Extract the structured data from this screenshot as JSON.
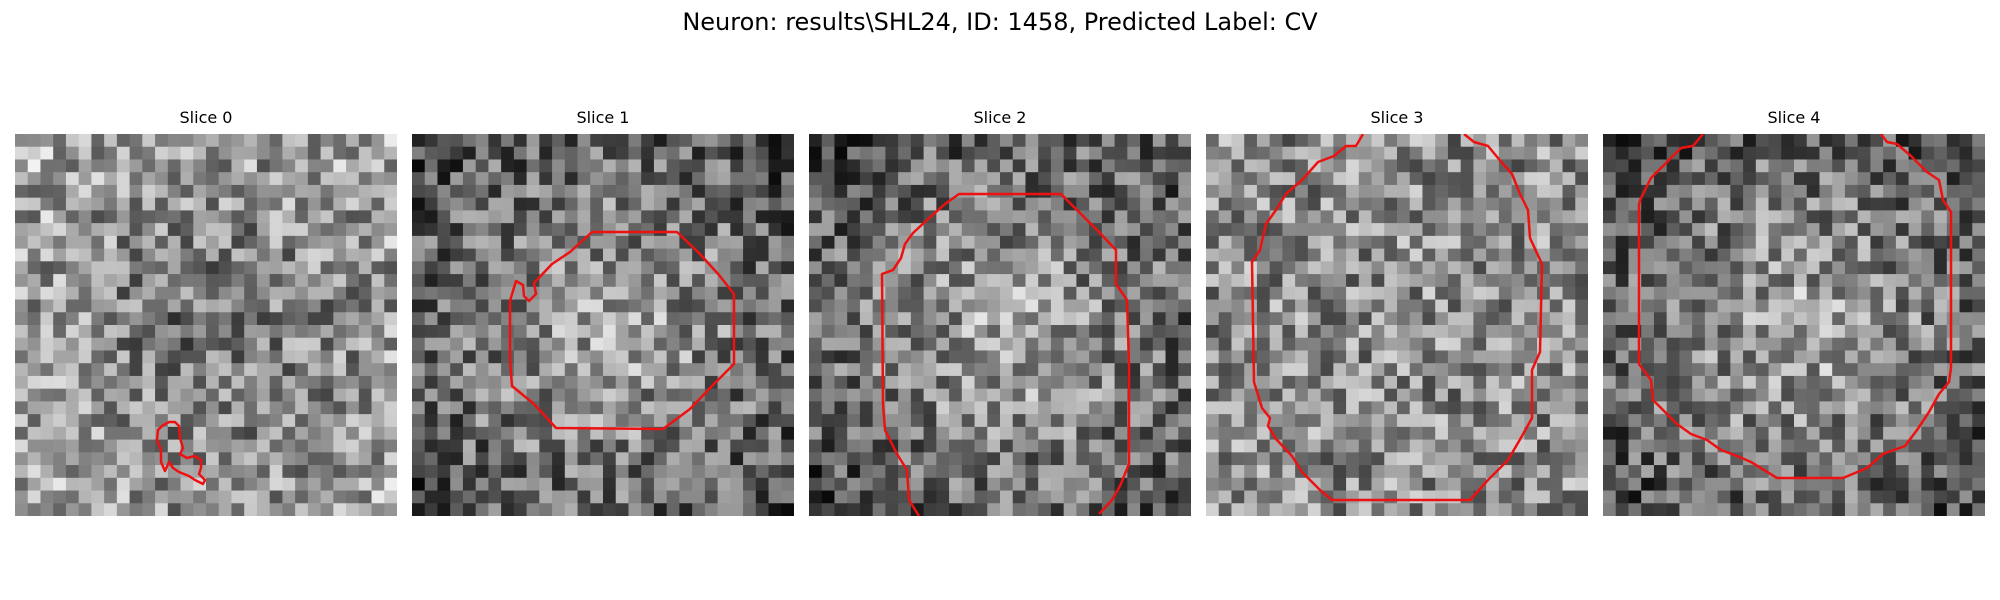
{
  "figure": {
    "title": "Neuron: results\\SHL24, ID: 1458, Predicted Label: CV"
  },
  "contour_color": "#ee1111",
  "slices": [
    {
      "title": "Slice 0",
      "seed": 11,
      "intensity": "dark-center"
    },
    {
      "title": "Slice 1",
      "seed": 23,
      "intensity": "bright-center"
    },
    {
      "title": "Slice 2",
      "seed": 37,
      "intensity": "bright-center"
    },
    {
      "title": "Slice 3",
      "seed": 41,
      "intensity": "flat"
    },
    {
      "title": "Slice 4",
      "seed": 53,
      "intensity": "bright-center"
    }
  ]
}
